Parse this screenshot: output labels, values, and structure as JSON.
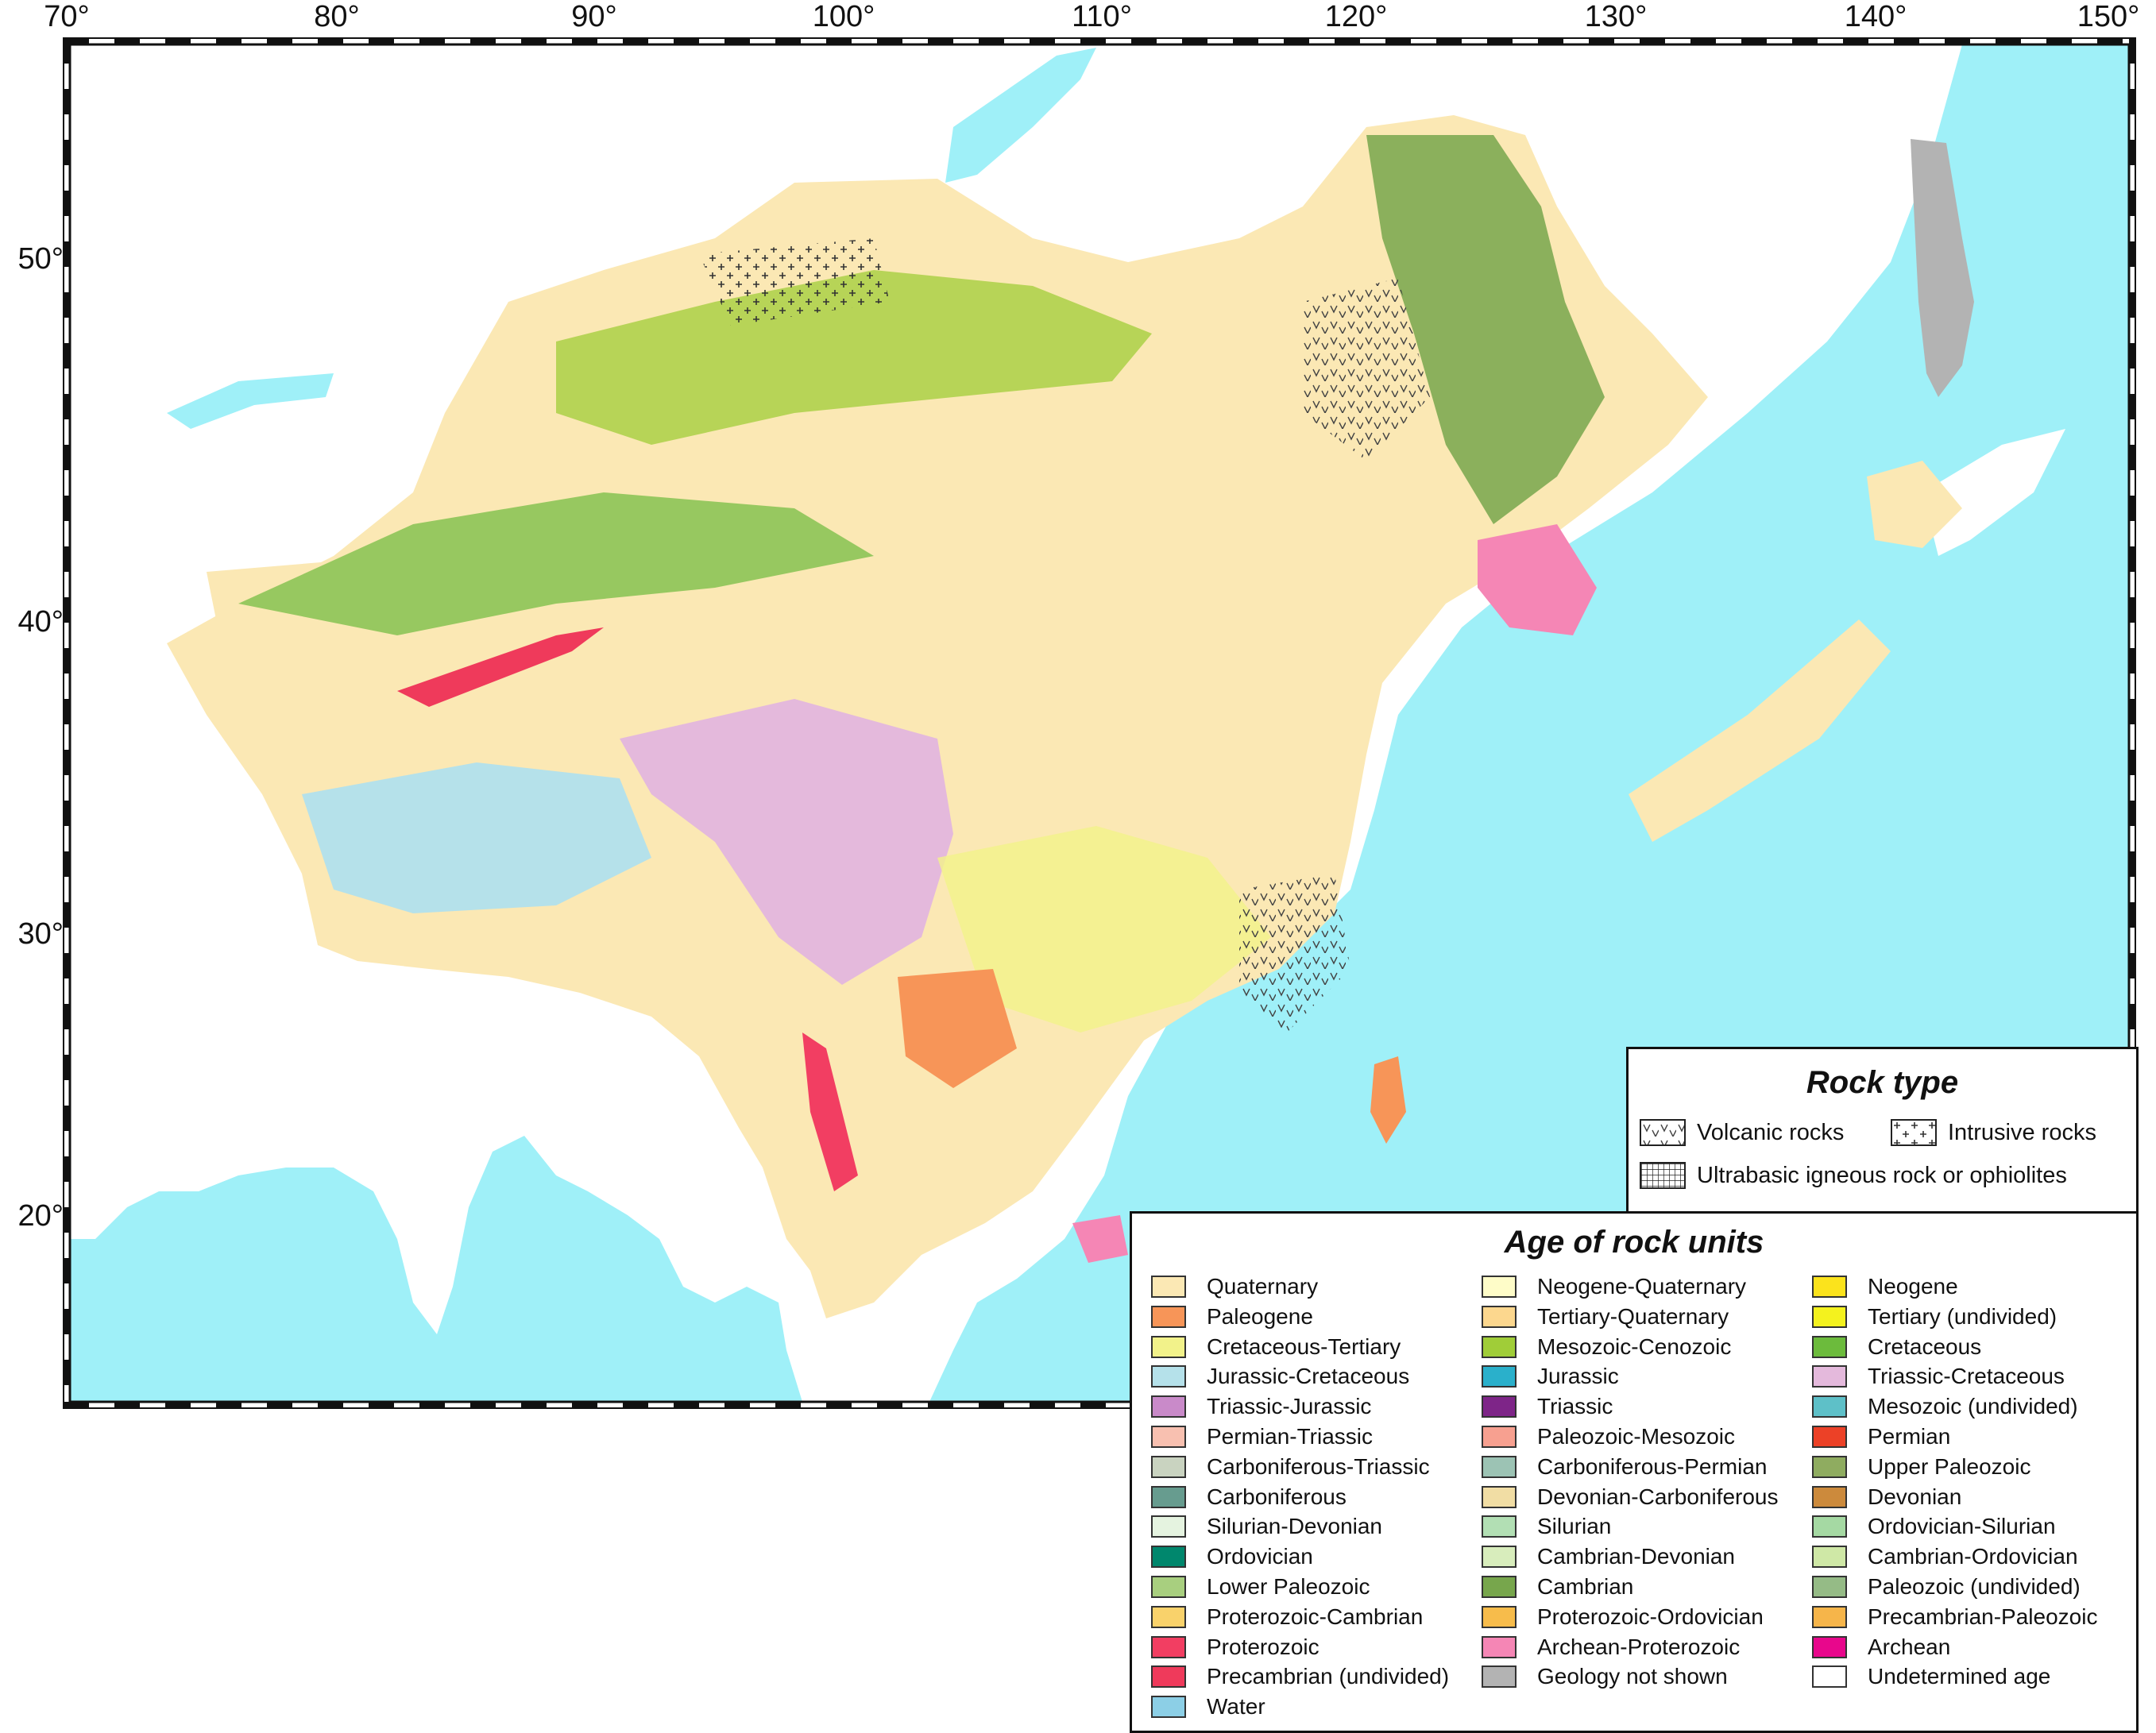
{
  "axes": {
    "longitude_labels": [
      "70°",
      "80°",
      "90°",
      "100°",
      "110°",
      "120°",
      "130°",
      "140°",
      "150°"
    ],
    "latitude_labels": [
      "50°",
      "40°",
      "30°",
      "20°"
    ],
    "lon_range": [
      70,
      150
    ],
    "lat_range": [
      15,
      55
    ]
  },
  "colors": {
    "water": "#9ff0f8",
    "land_outside": "#ffffff",
    "geology_not_shown": "#b3b3b3"
  },
  "rock_legend": {
    "title": "Rock type",
    "items": [
      {
        "label": "Volcanic rocks",
        "icon": "volcanic-pattern"
      },
      {
        "label": "Intrusive rocks",
        "icon": "intrusive-pattern"
      },
      {
        "label": "Ultrabasic igneous rock or ophiolites",
        "icon": "ultrabasic-pattern"
      }
    ]
  },
  "age_legend": {
    "title": "Age of rock units",
    "columns": [
      [
        {
          "label": "Quaternary",
          "color": "#fbe8b4"
        },
        {
          "label": "Paleogene",
          "color": "#f79558"
        },
        {
          "label": "Cretaceous-Tertiary",
          "color": "#f2f28a"
        },
        {
          "label": "Jurassic-Cretaceous",
          "color": "#b5e1ea"
        },
        {
          "label": "Triassic-Jurassic",
          "color": "#c98ac9"
        },
        {
          "label": "Permian-Triassic",
          "color": "#f8c0b0"
        },
        {
          "label": "Carboniferous-Triassic",
          "color": "#c9d3c0"
        },
        {
          "label": "Carboniferous",
          "color": "#679c8f"
        },
        {
          "label": "Silurian-Devonian",
          "color": "#e5f3e0"
        },
        {
          "label": "Ordovician",
          "color": "#00876d"
        },
        {
          "label": "Lower Paleozoic",
          "color": "#a8cf7f"
        },
        {
          "label": "Proterozoic-Cambrian",
          "color": "#f9d26b"
        },
        {
          "label": "Proterozoic",
          "color": "#f23e62"
        },
        {
          "label": "Precambrian (undivided)",
          "color": "#ef3a5b"
        },
        {
          "label": "Water",
          "color": "#8ccfe6"
        }
      ],
      [
        {
          "label": "Neogene-Quaternary",
          "color": "#fefcc8"
        },
        {
          "label": "Tertiary-Quaternary",
          "color": "#fcd78e"
        },
        {
          "label": "Mesozoic-Cenozoic",
          "color": "#a0cd38"
        },
        {
          "label": "Jurassic",
          "color": "#2ab0cb"
        },
        {
          "label": "Triassic",
          "color": "#7e2588"
        },
        {
          "label": "Paleozoic-Mesozoic",
          "color": "#f7a090"
        },
        {
          "label": "Carboniferous-Permian",
          "color": "#9cc3b4"
        },
        {
          "label": "Devonian-Carboniferous",
          "color": "#f1dda4"
        },
        {
          "label": "Silurian",
          "color": "#b2dfb4"
        },
        {
          "label": "Cambrian-Devonian",
          "color": "#d8edbc"
        },
        {
          "label": "Cambrian",
          "color": "#77a64c"
        },
        {
          "label": "Proterozoic-Ordovician",
          "color": "#f7bc4b"
        },
        {
          "label": "Archean-Proterozoic",
          "color": "#f586b5"
        },
        {
          "label": "Geology not shown",
          "color": "#b3b3b3"
        }
      ],
      [
        {
          "label": "Neogene",
          "color": "#fbe31c"
        },
        {
          "label": "Tertiary (undivided)",
          "color": "#f4f21e"
        },
        {
          "label": "Cretaceous",
          "color": "#6cbb3c"
        },
        {
          "label": "Triassic-Cretaceous",
          "color": "#e4b9dc"
        },
        {
          "label": "Mesozoic (undivided)",
          "color": "#5ec0c8"
        },
        {
          "label": "Permian",
          "color": "#ec4127"
        },
        {
          "label": "Upper Paleozoic",
          "color": "#8fac60"
        },
        {
          "label": "Devonian",
          "color": "#cc8a3c"
        },
        {
          "label": "Ordovician-Silurian",
          "color": "#a5d9a3"
        },
        {
          "label": "Cambrian-Ordovician",
          "color": "#cfe8a6"
        },
        {
          "label": "Paleozoic (undivided)",
          "color": "#95bb86"
        },
        {
          "label": "Precambrian-Paleozoic",
          "color": "#f6b54a"
        },
        {
          "label": "Archean",
          "color": "#e8078c"
        },
        {
          "label": "Undetermined age",
          "color": "#ffffff"
        }
      ]
    ]
  }
}
